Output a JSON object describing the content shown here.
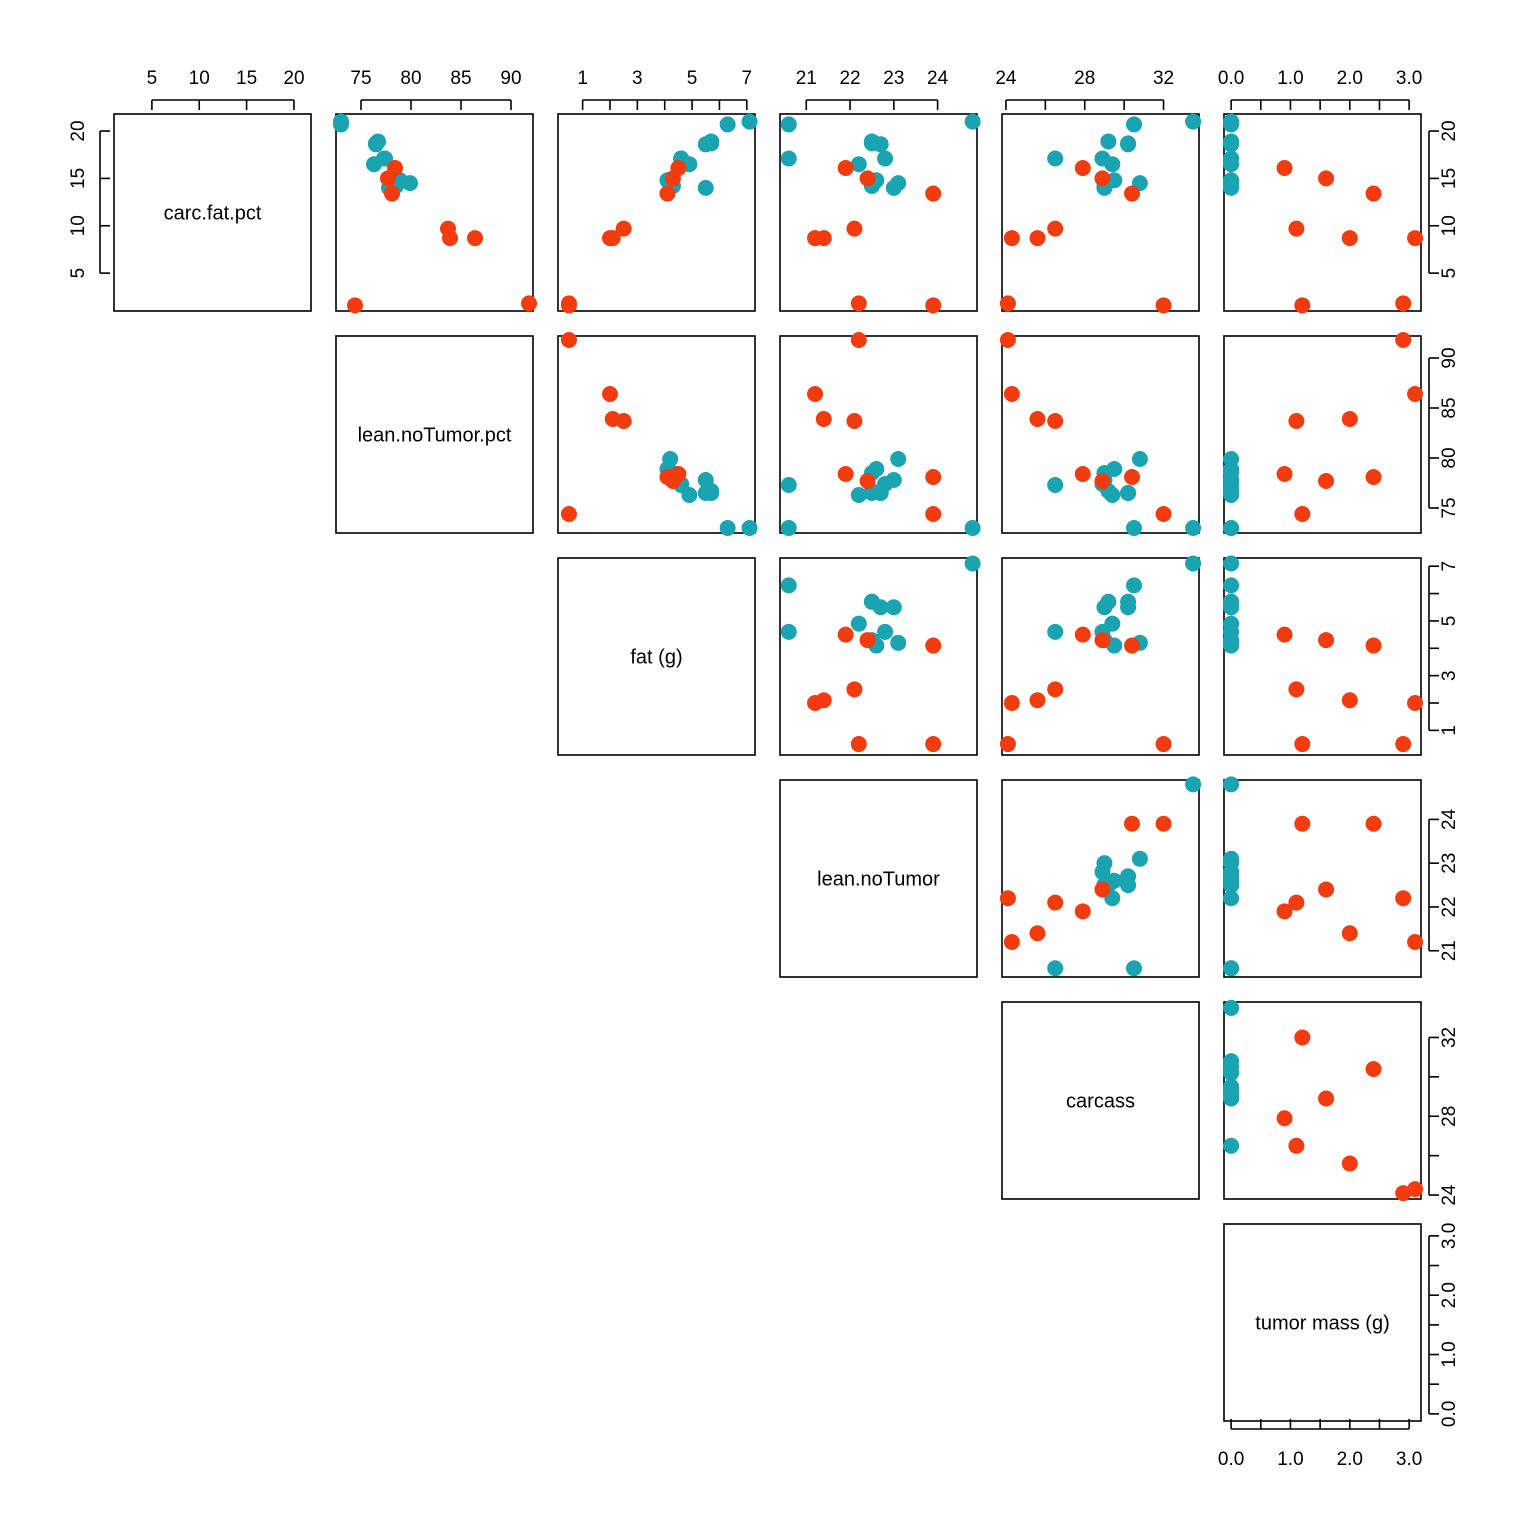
{
  "chart_data": {
    "type": "scatter",
    "layout": "scatterplot-matrix-upper-triangle",
    "variables": [
      "carc.fat.pct",
      "lean.noTumor.pct",
      "fat (g)",
      "lean.noTumor",
      "carcass",
      "tumor mass (g)"
    ],
    "axes": [
      {
        "range": [
          1.0,
          21.8
        ],
        "ticks": [
          5,
          10,
          15,
          20
        ],
        "tick_labels": [
          "5",
          "10",
          "15",
          "20"
        ]
      },
      {
        "range": [
          72.5,
          92.2
        ],
        "ticks": [
          75,
          80,
          85,
          90
        ],
        "tick_labels": [
          "75",
          "80",
          "85",
          "90"
        ]
      },
      {
        "range": [
          0.1,
          7.3
        ],
        "ticks": [
          1,
          2,
          3,
          4,
          5,
          6,
          7
        ],
        "tick_labels": [
          "1",
          "",
          "3",
          "",
          "5",
          "",
          "7"
        ]
      },
      {
        "range": [
          20.4,
          24.9
        ],
        "ticks": [
          21,
          22,
          23,
          24
        ],
        "tick_labels": [
          "21",
          "22",
          "23",
          "24"
        ]
      },
      {
        "range": [
          23.8,
          33.8
        ],
        "ticks": [
          24,
          26,
          28,
          30,
          32
        ],
        "tick_labels": [
          "24",
          "",
          "28",
          "",
          "32"
        ]
      },
      {
        "range": [
          -0.12,
          3.2
        ],
        "ticks": [
          0,
          0.5,
          1,
          1.5,
          2,
          2.5,
          3
        ],
        "tick_labels": [
          "0.0",
          "",
          "1.0",
          "",
          "2.0",
          "",
          "3.0"
        ]
      }
    ],
    "series": [
      {
        "color": "#1aa3b0",
        "points": [
          [
            21.0,
            73.0,
            7.1,
            24.8,
            33.5,
            0
          ],
          [
            20.7,
            73.0,
            6.3,
            20.6,
            30.5,
            0
          ],
          [
            18.9,
            76.7,
            5.7,
            22.5,
            29.2,
            0
          ],
          [
            18.6,
            76.5,
            5.5,
            22.7,
            30.2,
            0
          ],
          [
            17.1,
            77.4,
            4.6,
            22.8,
            28.9,
            0
          ],
          [
            16.5,
            76.3,
            4.9,
            22.2,
            29.4,
            0
          ],
          [
            14.8,
            78.9,
            4.1,
            22.6,
            29.5,
            0
          ],
          [
            14.5,
            79.9,
            4.2,
            23.1,
            30.8,
            0
          ],
          [
            14.2,
            78.5,
            4.3,
            22.5,
            29.0,
            0
          ],
          [
            18.7,
            76.5,
            5.7,
            22.5,
            30.2,
            0
          ],
          [
            14.0,
            77.8,
            5.5,
            23.0,
            29.0,
            0
          ],
          [
            17.1,
            77.3,
            4.6,
            20.6,
            26.5,
            0
          ]
        ]
      },
      {
        "color": "#f23b0f",
        "points": [
          [
            16.1,
            78.4,
            4.5,
            21.9,
            27.9,
            0.9
          ],
          [
            15.0,
            77.7,
            4.3,
            22.4,
            28.9,
            1.6
          ],
          [
            13.4,
            78.1,
            4.1,
            23.9,
            30.4,
            2.4
          ],
          [
            9.7,
            83.7,
            2.5,
            22.1,
            26.5,
            1.1
          ],
          [
            8.7,
            83.9,
            2.1,
            21.4,
            25.6,
            2.0
          ],
          [
            8.7,
            86.4,
            2.0,
            21.2,
            24.3,
            3.1
          ],
          [
            1.8,
            91.8,
            0.5,
            22.2,
            24.1,
            2.9
          ],
          [
            1.6,
            74.4,
            0.5,
            23.9,
            32.0,
            1.2
          ]
        ]
      }
    ]
  }
}
